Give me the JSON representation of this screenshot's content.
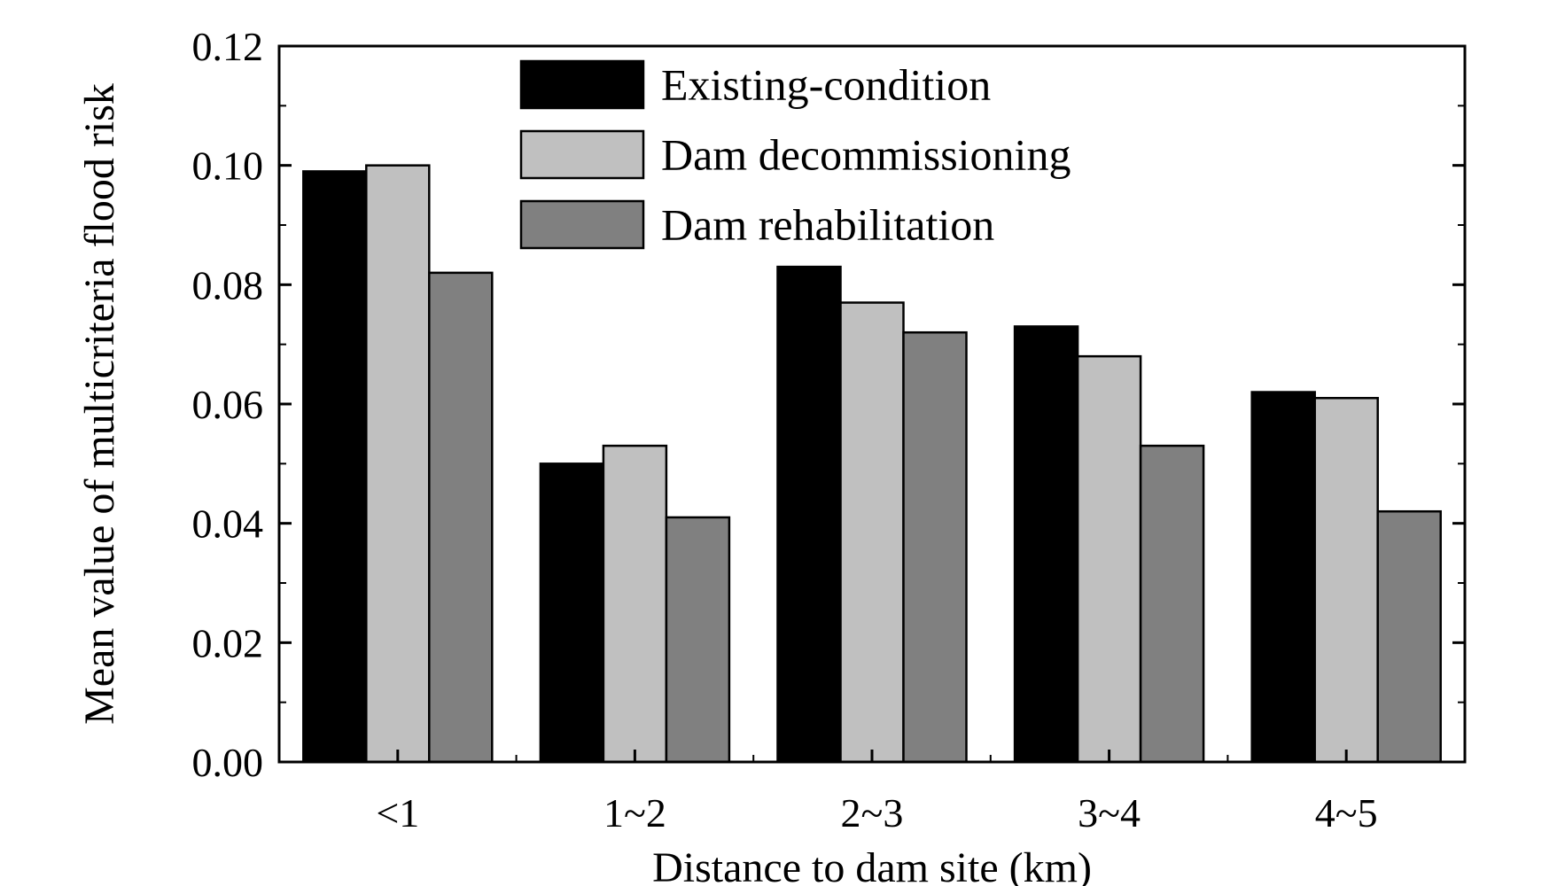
{
  "chart_data": {
    "type": "bar",
    "title": "",
    "xlabel": "Distance to dam site (km)",
    "ylabel": "Mean value of multicriteria flood risk",
    "categories": [
      "<1",
      "1~2",
      "2~3",
      "3~4",
      "4~5"
    ],
    "series": [
      {
        "name": "Existing-condition",
        "values": [
          0.099,
          0.05,
          0.083,
          0.073,
          0.062
        ],
        "color": "#000000"
      },
      {
        "name": "Dam decommissioning",
        "values": [
          0.1,
          0.053,
          0.077,
          0.068,
          0.061
        ],
        "color": "#c0c0c0"
      },
      {
        "name": "Dam rehabilitation",
        "values": [
          0.082,
          0.041,
          0.072,
          0.053,
          0.042
        ],
        "color": "#808080"
      }
    ],
    "ylim": [
      0,
      0.12
    ],
    "yticks": [
      "0.00",
      "0.02",
      "0.04",
      "0.06",
      "0.08",
      "0.10",
      "0.12"
    ],
    "legend_position": "top-center",
    "grid": false
  }
}
